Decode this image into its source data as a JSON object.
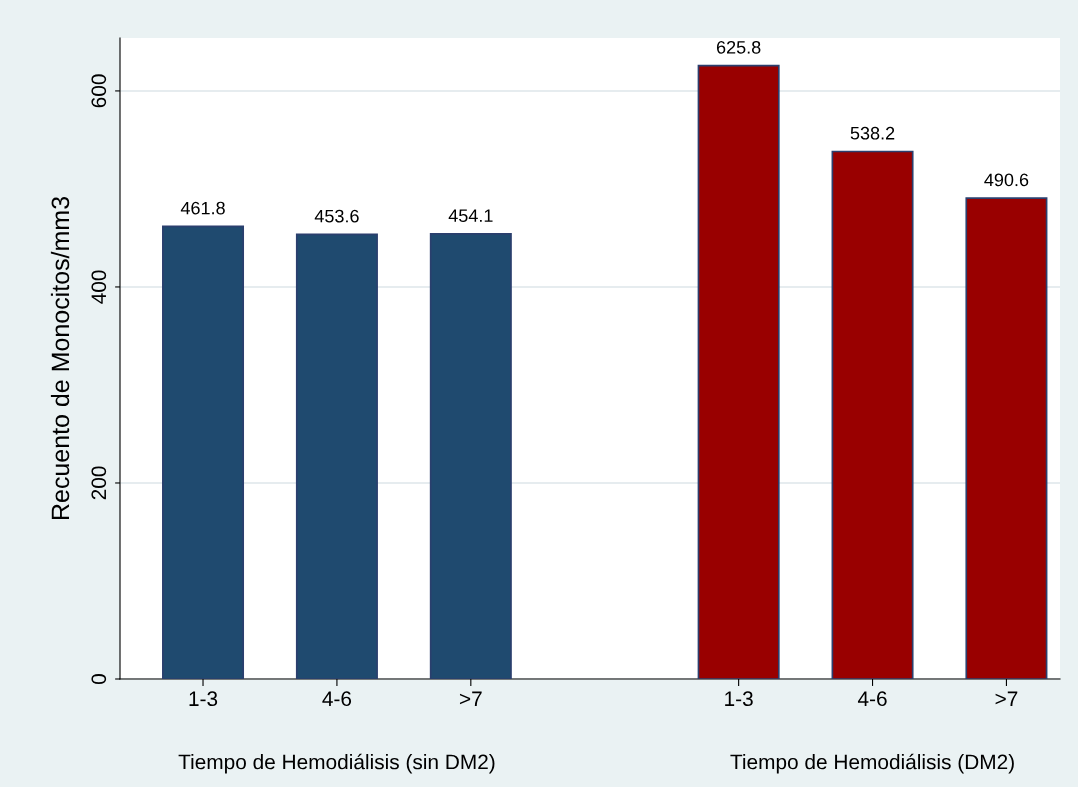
{
  "chart_data": {
    "type": "bar",
    "ylabel": "Recuento de Monocitos/mm3",
    "categories": [
      "1-3",
      "4-6",
      ">7",
      null,
      "1-3",
      "4-6",
      ">7"
    ],
    "series": [
      {
        "color": "#1f4a6f",
        "values": [
          461.8,
          453.6,
          454.1,
          null,
          null,
          null,
          null
        ]
      },
      {
        "color": "#990000",
        "values": [
          null,
          null,
          null,
          null,
          625.8,
          538.2,
          490.6
        ]
      }
    ],
    "annotations": [
      "Tiempo de Hemodiálisis (sin DM2)",
      "Tiempo de Hemodiálisis (DM2)"
    ],
    "ylim": [
      0,
      654
    ],
    "yticks": [
      0,
      200,
      400,
      600
    ],
    "grid": "y",
    "data_labels": true,
    "legend": false
  }
}
